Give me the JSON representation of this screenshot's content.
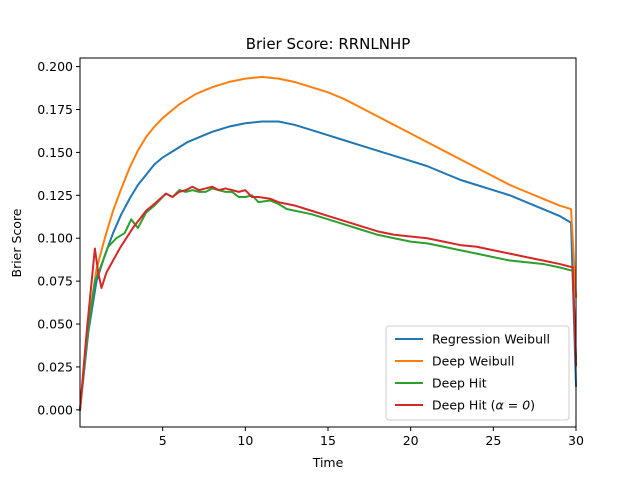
{
  "chart_data": {
    "type": "line",
    "title": "Brier Score: RRNLNHP",
    "xlabel": "Time",
    "ylabel": "Brier Score",
    "xlim": [
      0,
      30
    ],
    "ylim": [
      -0.01,
      0.205
    ],
    "xticks": [
      5,
      10,
      15,
      20,
      25,
      30
    ],
    "yticks": [
      "0.000",
      "0.025",
      "0.050",
      "0.075",
      "0.100",
      "0.125",
      "0.150",
      "0.175",
      "0.200"
    ],
    "legend_position": "lower-right",
    "grid": false,
    "series": [
      {
        "name": "Regression Weibull",
        "color": "#1f77b4",
        "x": [
          0,
          0.5,
          1,
          1.5,
          2,
          2.5,
          3,
          3.5,
          4,
          4.5,
          5,
          5.5,
          6,
          6.5,
          7,
          7.5,
          8,
          9,
          10,
          11,
          12,
          13,
          14,
          15,
          16,
          17,
          18,
          19,
          20,
          21,
          22,
          23,
          24,
          25,
          26,
          27,
          28,
          29,
          29.7,
          30
        ],
        "y": [
          0.0,
          0.045,
          0.075,
          0.09,
          0.103,
          0.114,
          0.123,
          0.131,
          0.137,
          0.143,
          0.147,
          0.15,
          0.153,
          0.156,
          0.158,
          0.16,
          0.162,
          0.165,
          0.167,
          0.168,
          0.168,
          0.166,
          0.163,
          0.16,
          0.157,
          0.154,
          0.151,
          0.148,
          0.145,
          0.142,
          0.138,
          0.134,
          0.131,
          0.128,
          0.125,
          0.121,
          0.117,
          0.113,
          0.109,
          0.014
        ]
      },
      {
        "name": "Deep Weibull",
        "color": "#ff7f0e",
        "x": [
          0,
          0.5,
          1,
          1.5,
          2,
          2.5,
          3,
          3.5,
          4,
          4.5,
          5,
          5.5,
          6,
          6.5,
          7,
          7.5,
          8,
          9,
          10,
          11,
          12,
          13,
          14,
          15,
          16,
          17,
          18,
          19,
          20,
          21,
          22,
          23,
          24,
          25,
          26,
          27,
          28,
          29,
          29.7,
          30
        ],
        "y": [
          0.0,
          0.05,
          0.082,
          0.1,
          0.116,
          0.129,
          0.141,
          0.151,
          0.159,
          0.165,
          0.17,
          0.174,
          0.178,
          0.181,
          0.184,
          0.186,
          0.188,
          0.191,
          0.193,
          0.194,
          0.193,
          0.191,
          0.188,
          0.185,
          0.181,
          0.176,
          0.171,
          0.166,
          0.161,
          0.156,
          0.151,
          0.146,
          0.141,
          0.136,
          0.131,
          0.127,
          0.123,
          0.119,
          0.117,
          0.066
        ]
      },
      {
        "name": "Deep Hit",
        "color": "#2ca02c",
        "x": [
          0,
          0.4,
          0.9,
          1.2,
          1.7,
          2.2,
          2.7,
          3.1,
          3.5,
          4,
          4.5,
          5.2,
          5.6,
          6,
          6.4,
          6.8,
          7.2,
          7.6,
          8,
          8.4,
          8.8,
          9.2,
          9.6,
          10,
          10.4,
          10.8,
          11.5,
          12,
          12.5,
          13,
          14,
          15,
          16,
          17,
          18,
          19,
          20,
          21,
          22,
          23,
          24,
          25,
          26,
          27,
          28,
          29,
          29.8,
          30
        ],
        "y": [
          0.0,
          0.04,
          0.075,
          0.082,
          0.095,
          0.1,
          0.103,
          0.111,
          0.106,
          0.115,
          0.119,
          0.126,
          0.124,
          0.128,
          0.127,
          0.128,
          0.127,
          0.127,
          0.129,
          0.128,
          0.127,
          0.127,
          0.124,
          0.124,
          0.125,
          0.121,
          0.122,
          0.12,
          0.117,
          0.116,
          0.114,
          0.111,
          0.108,
          0.105,
          0.102,
          0.1,
          0.098,
          0.097,
          0.095,
          0.093,
          0.091,
          0.089,
          0.087,
          0.086,
          0.085,
          0.083,
          0.081,
          0.03
        ]
      },
      {
        "name": "Deep Hit (α = 0)",
        "legend_prefix": "Deep Hit (",
        "legend_math": "α = 0",
        "legend_suffix": ")",
        "color": "#d62728",
        "x": [
          0,
          0.4,
          0.9,
          1.1,
          1.3,
          1.6,
          2,
          2.4,
          2.8,
          3.2,
          3.6,
          4,
          4.5,
          5.2,
          5.6,
          6,
          6.4,
          6.8,
          7.2,
          7.6,
          8,
          8.4,
          8.8,
          9.2,
          9.6,
          10,
          10.4,
          10.8,
          11.5,
          12,
          12.5,
          13,
          14,
          15,
          16,
          17,
          18,
          19,
          20,
          21,
          22,
          23,
          24,
          25,
          26,
          27,
          28,
          29,
          29.8,
          30
        ],
        "y": [
          0.0,
          0.045,
          0.094,
          0.08,
          0.071,
          0.08,
          0.087,
          0.094,
          0.1,
          0.106,
          0.111,
          0.116,
          0.12,
          0.126,
          0.124,
          0.127,
          0.128,
          0.13,
          0.128,
          0.129,
          0.13,
          0.128,
          0.129,
          0.128,
          0.127,
          0.128,
          0.124,
          0.124,
          0.123,
          0.121,
          0.12,
          0.119,
          0.116,
          0.113,
          0.11,
          0.107,
          0.104,
          0.102,
          0.101,
          0.1,
          0.098,
          0.096,
          0.095,
          0.093,
          0.091,
          0.089,
          0.087,
          0.085,
          0.083,
          0.026
        ]
      }
    ]
  }
}
